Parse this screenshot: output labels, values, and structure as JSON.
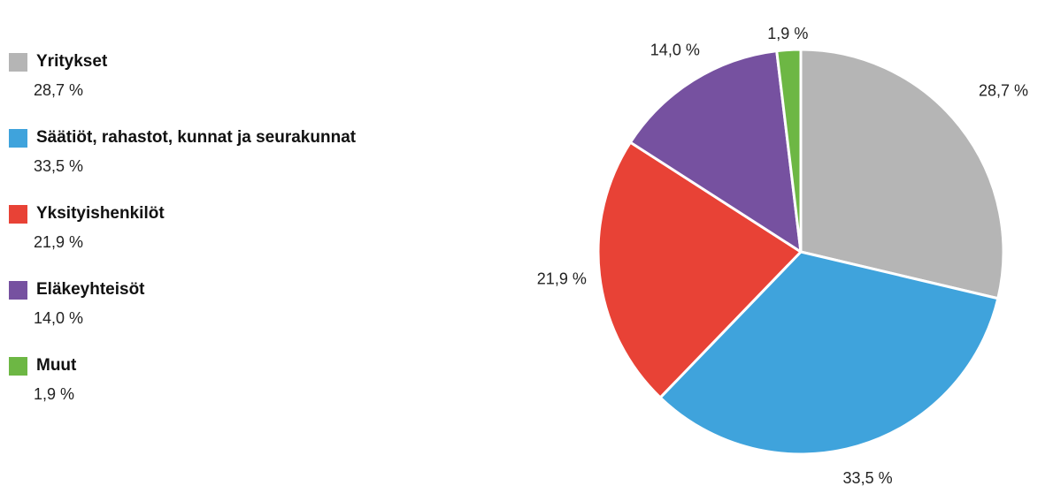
{
  "chart_data": {
    "type": "pie",
    "title": "",
    "categories": [
      "Yritykset",
      "Säätiöt, rahastot, kunnat ja seurakunnat",
      "Yksityishenkilöt",
      "Eläkeyhteisöt",
      "Muut"
    ],
    "values": [
      28.7,
      33.5,
      21.9,
      14.0,
      1.9
    ],
    "value_labels": [
      "28,7 %",
      "33,5 %",
      "21,9 %",
      "14,0 %",
      "1,9 %"
    ],
    "colors": [
      "#b5b5b5",
      "#3fa3dc",
      "#e84236",
      "#7651a0",
      "#6db744"
    ],
    "legend": "left",
    "start": "top, clockwise"
  },
  "legend": {
    "items": [
      {
        "label": "Yritykset",
        "value": "28,7 %",
        "color": "#b5b5b5"
      },
      {
        "label": "Säätiöt, rahastot, kunnat ja seurakunnat",
        "value": "33,5 %",
        "color": "#3fa3dc"
      },
      {
        "label": "Yksityishenkilöt",
        "value": "21,9 %",
        "color": "#e84236"
      },
      {
        "label": "Eläkeyhteisöt",
        "value": "14,0 %",
        "color": "#7651a0"
      },
      {
        "label": "Muut",
        "value": "1,9 %",
        "color": "#6db744"
      }
    ]
  }
}
